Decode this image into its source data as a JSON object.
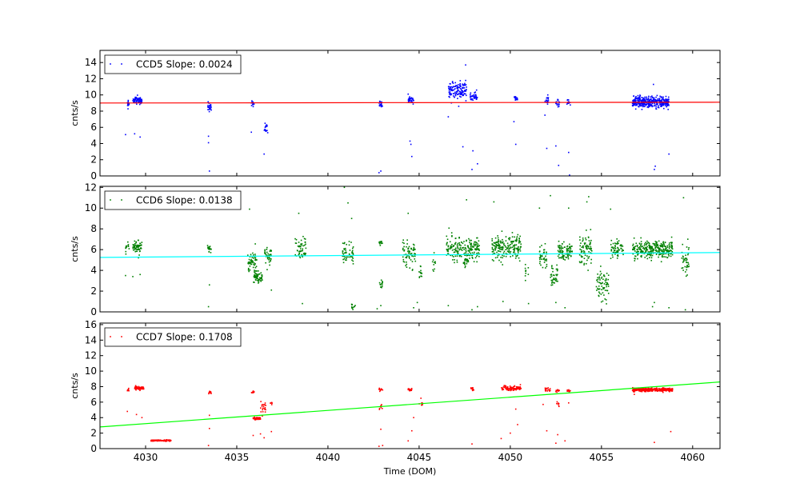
{
  "chart_data": [
    {
      "type": "scatter",
      "xlim": [
        4027.5,
        4061.5
      ],
      "ylim": [
        0,
        15.5
      ],
      "yticks": [
        0,
        2,
        4,
        6,
        8,
        10,
        12,
        14
      ],
      "xticks": [
        4030,
        4035,
        4040,
        4045,
        4050,
        4055,
        4060
      ],
      "ylabel": "cnts/s",
      "xlabel": "",
      "show_xtick_labels": false,
      "legend": "CCD5 Slope: 0.0024",
      "legend_position": "top-left",
      "point_color": "#0000ff",
      "line_color": "#ff0000",
      "fit_line": {
        "x": [
          4027.5,
          4061.5
        ],
        "y": [
          9.0,
          9.1
        ]
      },
      "series": {
        "name": "CCD5",
        "clusters": [
          {
            "x": [
              4029.0,
              4029.1
            ],
            "y": 8.8,
            "s": 0.5,
            "n": 14
          },
          {
            "x": [
              4029.3,
              4029.8
            ],
            "y": 9.3,
            "s": 0.4,
            "n": 70
          },
          {
            "x": [
              4033.4,
              4033.6
            ],
            "y": 8.5,
            "s": 0.6,
            "n": 25
          },
          {
            "x": [
              4035.8,
              4035.95
            ],
            "y": 8.8,
            "s": 0.4,
            "n": 14
          },
          {
            "x": [
              4036.5,
              4036.7
            ],
            "y": 5.9,
            "s": 0.6,
            "n": 18
          },
          {
            "x": [
              4042.8,
              4043.0
            ],
            "y": 8.9,
            "s": 0.5,
            "n": 20
          },
          {
            "x": [
              4044.4,
              4044.7
            ],
            "y": 9.4,
            "s": 0.4,
            "n": 28
          },
          {
            "x": [
              4046.6,
              4047.6
            ],
            "y": 10.5,
            "s": 0.9,
            "n": 130
          },
          {
            "x": [
              4047.8,
              4048.2
            ],
            "y": 9.8,
            "s": 0.5,
            "n": 35
          },
          {
            "x": [
              4050.2,
              4050.4
            ],
            "y": 9.6,
            "s": 0.3,
            "n": 14
          },
          {
            "x": [
              4051.9,
              4052.1
            ],
            "y": 9.3,
            "s": 0.4,
            "n": 16
          },
          {
            "x": [
              4052.5,
              4052.7
            ],
            "y": 9.0,
            "s": 0.4,
            "n": 14
          },
          {
            "x": [
              4053.1,
              4053.3
            ],
            "y": 9.0,
            "s": 0.4,
            "n": 14
          },
          {
            "x": [
              4056.7,
              4058.7
            ],
            "y": 9.1,
            "s": 0.6,
            "n": 360
          }
        ],
        "outliers": [
          [
            4028.9,
            5.1
          ],
          [
            4029.4,
            5.2
          ],
          [
            4029.7,
            4.8
          ],
          [
            4033.45,
            4.9
          ],
          [
            4033.5,
            0.6
          ],
          [
            4033.45,
            4.1
          ],
          [
            4035.8,
            5.4
          ],
          [
            4036.5,
            2.7
          ],
          [
            4042.8,
            0.4
          ],
          [
            4042.9,
            0.6
          ],
          [
            4044.5,
            4.3
          ],
          [
            4044.55,
            3.9
          ],
          [
            4044.6,
            2.4
          ],
          [
            4044.4,
            10.1
          ],
          [
            4046.6,
            7.3
          ],
          [
            4047.4,
            3.6
          ],
          [
            4047.55,
            13.7
          ],
          [
            4047.9,
            0.8
          ],
          [
            4047.95,
            3.1
          ],
          [
            4048.2,
            1.5
          ],
          [
            4050.2,
            6.7
          ],
          [
            4050.3,
            3.9
          ],
          [
            4051.9,
            7.5
          ],
          [
            4052.0,
            3.4
          ],
          [
            4052.5,
            3.7
          ],
          [
            4052.65,
            1.3
          ],
          [
            4053.2,
            2.9
          ],
          [
            4053.25,
            0.1
          ],
          [
            4057.9,
            0.8
          ],
          [
            4057.95,
            1.2
          ],
          [
            4058.7,
            2.7
          ],
          [
            4057.85,
            11.3
          ],
          [
            4048.15,
            10.6
          ]
        ]
      }
    },
    {
      "type": "scatter",
      "xlim": [
        4027.5,
        4061.5
      ],
      "ylim": [
        0,
        12.1
      ],
      "yticks": [
        0,
        2,
        4,
        6,
        8,
        10,
        12
      ],
      "xticks": [
        4030,
        4035,
        4040,
        4045,
        4050,
        4055,
        4060
      ],
      "ylabel": "cnts/s",
      "xlabel": "",
      "show_xtick_labels": false,
      "legend": "CCD6 Slope: 0.0138",
      "legend_position": "top-left",
      "point_color": "#008000",
      "line_color": "#00ffff",
      "fit_line": {
        "x": [
          4027.5,
          4061.5
        ],
        "y": [
          5.25,
          5.72
        ]
      },
      "series": {
        "name": "CCD6",
        "clusters": [
          {
            "x": [
              4028.9,
              4029.1
            ],
            "y": 6.2,
            "s": 0.5,
            "n": 15
          },
          {
            "x": [
              4029.3,
              4029.8
            ],
            "y": 6.3,
            "s": 0.6,
            "n": 60
          },
          {
            "x": [
              4033.4,
              4033.6
            ],
            "y": 6.0,
            "s": 0.4,
            "n": 16
          },
          {
            "x": [
              4035.6,
              4036.1
            ],
            "y": 4.8,
            "s": 1.2,
            "n": 60
          },
          {
            "x": [
              4035.9,
              4036.4
            ],
            "y": 3.4,
            "s": 0.5,
            "n": 60
          },
          {
            "x": [
              4036.5,
              4036.9
            ],
            "y": 5.5,
            "s": 0.8,
            "n": 40
          },
          {
            "x": [
              4038.2,
              4038.8
            ],
            "y": 6.1,
            "s": 1.0,
            "n": 55
          },
          {
            "x": [
              4040.8,
              4041.4
            ],
            "y": 5.6,
            "s": 1.0,
            "n": 50
          },
          {
            "x": [
              4041.3,
              4041.5
            ],
            "y": 0.5,
            "s": 0.3,
            "n": 12
          },
          {
            "x": [
              4042.8,
              4043.0
            ],
            "y": 6.6,
            "s": 0.3,
            "n": 14
          },
          {
            "x": [
              4042.8,
              4043.0
            ],
            "y": 2.7,
            "s": 0.4,
            "n": 14
          },
          {
            "x": [
              4044.1,
              4044.8
            ],
            "y": 5.8,
            "s": 1.2,
            "n": 70
          },
          {
            "x": [
              4045.0,
              4045.2
            ],
            "y": 3.8,
            "s": 0.5,
            "n": 14
          },
          {
            "x": [
              4045.7,
              4045.9
            ],
            "y": 4.5,
            "s": 0.8,
            "n": 10
          },
          {
            "x": [
              4046.5,
              4048.3
            ],
            "y": 6.2,
            "s": 1.0,
            "n": 200
          },
          {
            "x": [
              4047.4,
              4047.7
            ],
            "y": 4.8,
            "s": 0.3,
            "n": 18
          },
          {
            "x": [
              4049.0,
              4050.6
            ],
            "y": 6.2,
            "s": 1.0,
            "n": 200
          },
          {
            "x": [
              4050.8,
              4051.0
            ],
            "y": 4.0,
            "s": 0.8,
            "n": 10
          },
          {
            "x": [
              4051.6,
              4052.0
            ],
            "y": 5.3,
            "s": 1.0,
            "n": 40
          },
          {
            "x": [
              4052.2,
              4052.6
            ],
            "y": 3.3,
            "s": 1.0,
            "n": 40
          },
          {
            "x": [
              4052.6,
              4053.4
            ],
            "y": 5.9,
            "s": 0.8,
            "n": 90
          },
          {
            "x": [
              4053.8,
              4054.5
            ],
            "y": 5.9,
            "s": 1.3,
            "n": 80
          },
          {
            "x": [
              4054.7,
              4055.4
            ],
            "y": 2.6,
            "s": 1.3,
            "n": 70
          },
          {
            "x": [
              4055.5,
              4056.2
            ],
            "y": 6.1,
            "s": 0.8,
            "n": 60
          },
          {
            "x": [
              4056.7,
              4058.9
            ],
            "y": 6.0,
            "s": 0.8,
            "n": 300
          },
          {
            "x": [
              4059.4,
              4059.8
            ],
            "y": 4.9,
            "s": 1.0,
            "n": 40
          }
        ],
        "outliers": [
          [
            4028.9,
            3.5
          ],
          [
            4029.3,
            3.4
          ],
          [
            4029.7,
            3.6
          ],
          [
            4033.45,
            0.5
          ],
          [
            4033.5,
            2.6
          ],
          [
            4035.7,
            9.9
          ],
          [
            4036.9,
            2.1
          ],
          [
            4038.4,
            9.5
          ],
          [
            4038.6,
            0.8
          ],
          [
            4040.9,
            12.0
          ],
          [
            4041.1,
            10.5
          ],
          [
            4041.3,
            9.0
          ],
          [
            4042.7,
            0.3
          ],
          [
            4042.9,
            0.6
          ],
          [
            4044.4,
            9.5
          ],
          [
            4044.7,
            0.4
          ],
          [
            4044.9,
            0.9
          ],
          [
            4046.6,
            0.6
          ],
          [
            4047.6,
            10.8
          ],
          [
            4047.9,
            0.2
          ],
          [
            4048.2,
            0.5
          ],
          [
            4049.1,
            10.6
          ],
          [
            4049.6,
            1.0
          ],
          [
            4051.0,
            0.8
          ],
          [
            4051.6,
            10.0
          ],
          [
            4052.2,
            11.2
          ],
          [
            4052.5,
            0.9
          ],
          [
            4053.2,
            10.0
          ],
          [
            4053.0,
            0.4
          ],
          [
            4054.2,
            10.6
          ],
          [
            4054.3,
            11.1
          ],
          [
            4055.5,
            9.9
          ],
          [
            4057.8,
            0.5
          ],
          [
            4057.9,
            0.9
          ],
          [
            4058.7,
            0.4
          ],
          [
            4059.5,
            11.0
          ],
          [
            4059.6,
            0.2
          ]
        ]
      }
    },
    {
      "type": "scatter",
      "xlim": [
        4027.5,
        4061.5
      ],
      "ylim": [
        0,
        16.2
      ],
      "yticks": [
        0,
        2,
        4,
        6,
        8,
        10,
        12,
        14,
        16
      ],
      "xticks": [
        4030,
        4035,
        4040,
        4045,
        4050,
        4055,
        4060
      ],
      "ylabel": "cnts/s",
      "xlabel": "Time (DOM)",
      "show_xtick_labels": true,
      "legend": "CCD7 Slope: 0.1708",
      "legend_position": "top-left",
      "point_color": "#ff0000",
      "line_color": "#00ff00",
      "fit_line": {
        "x": [
          4027.5,
          4061.5
        ],
        "y": [
          2.8,
          8.6
        ]
      },
      "series": {
        "name": "CCD7",
        "clusters": [
          {
            "x": [
              4029.0,
              4029.1
            ],
            "y": 7.5,
            "s": 0.2,
            "n": 10
          },
          {
            "x": [
              4029.4,
              4029.9
            ],
            "y": 7.8,
            "s": 0.2,
            "n": 60
          },
          {
            "x": [
              4030.3,
              4031.4
            ],
            "y": 1.05,
            "s": 0.07,
            "n": 110
          },
          {
            "x": [
              4033.45,
              4033.6
            ],
            "y": 7.2,
            "s": 0.2,
            "n": 12
          },
          {
            "x": [
              4035.8,
              4035.95
            ],
            "y": 7.3,
            "s": 0.15,
            "n": 10
          },
          {
            "x": [
              4035.9,
              4036.3
            ],
            "y": 3.9,
            "s": 0.15,
            "n": 50
          },
          {
            "x": [
              4036.3,
              4036.6
            ],
            "y": 5.4,
            "s": 0.7,
            "n": 20
          },
          {
            "x": [
              4036.85,
              4036.95
            ],
            "y": 5.9,
            "s": 0.2,
            "n": 6
          },
          {
            "x": [
              4042.8,
              4043.0
            ],
            "y": 7.6,
            "s": 0.2,
            "n": 12
          },
          {
            "x": [
              4042.8,
              4043.0
            ],
            "y": 5.4,
            "s": 0.4,
            "n": 8
          },
          {
            "x": [
              4044.4,
              4044.6
            ],
            "y": 7.6,
            "s": 0.15,
            "n": 16
          },
          {
            "x": [
              4045.0,
              4045.2
            ],
            "y": 5.7,
            "s": 0.3,
            "n": 8
          },
          {
            "x": [
              4047.8,
              4048.0
            ],
            "y": 7.7,
            "s": 0.3,
            "n": 12
          },
          {
            "x": [
              4049.5,
              4050.6
            ],
            "y": 7.8,
            "s": 0.25,
            "n": 90
          },
          {
            "x": [
              4051.9,
              4052.2
            ],
            "y": 7.6,
            "s": 0.2,
            "n": 20
          },
          {
            "x": [
              4052.5,
              4052.7
            ],
            "y": 7.5,
            "s": 0.2,
            "n": 10
          },
          {
            "x": [
              4052.5,
              4052.7
            ],
            "y": 5.7,
            "s": 0.4,
            "n": 8
          },
          {
            "x": [
              4053.1,
              4053.3
            ],
            "y": 7.5,
            "s": 0.15,
            "n": 10
          },
          {
            "x": [
              4056.7,
              4058.9
            ],
            "y": 7.6,
            "s": 0.2,
            "n": 300
          }
        ],
        "outliers": [
          [
            4029.0,
            4.8
          ],
          [
            4029.5,
            4.4
          ],
          [
            4029.8,
            4.0
          ],
          [
            4033.5,
            4.3
          ],
          [
            4033.45,
            0.4
          ],
          [
            4033.5,
            2.6
          ],
          [
            4035.9,
            1.7
          ],
          [
            4036.3,
            1.9
          ],
          [
            4036.5,
            1.4
          ],
          [
            4036.9,
            2.2
          ],
          [
            4036.4,
            4.2
          ],
          [
            4042.8,
            0.3
          ],
          [
            4042.9,
            2.5
          ],
          [
            4043.0,
            0.4
          ],
          [
            4044.4,
            1.0
          ],
          [
            4044.6,
            2.3
          ],
          [
            4044.7,
            4.0
          ],
          [
            4045.1,
            6.5
          ],
          [
            4047.9,
            0.6
          ],
          [
            4049.5,
            1.3
          ],
          [
            4050.0,
            2.0
          ],
          [
            4050.3,
            5.1
          ],
          [
            4050.4,
            3.1
          ],
          [
            4051.8,
            5.7
          ],
          [
            4052.0,
            2.3
          ],
          [
            4052.5,
            0.7
          ],
          [
            4052.6,
            1.8
          ],
          [
            4053.0,
            1.0
          ],
          [
            4053.2,
            5.9
          ],
          [
            4056.8,
            7.0
          ],
          [
            4057.9,
            0.8
          ],
          [
            4058.8,
            2.2
          ]
        ]
      }
    }
  ]
}
